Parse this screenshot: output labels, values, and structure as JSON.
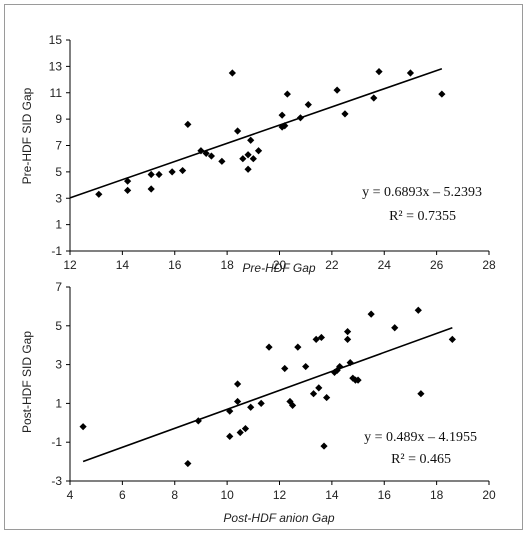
{
  "chart_data": [
    {
      "type": "scatter",
      "title": "",
      "xlabel": "Pre-HDF Gap",
      "ylabel": "Pre-HDF SID Gap",
      "xlim": [
        12,
        28
      ],
      "ylim": [
        -1,
        15
      ],
      "xticks": [
        12,
        14,
        16,
        18,
        20,
        22,
        24,
        26,
        28
      ],
      "yticks": [
        -1,
        1,
        3,
        5,
        7,
        9,
        11,
        13,
        15
      ],
      "x": [
        13.1,
        14.2,
        14.2,
        15.1,
        15.1,
        15.4,
        15.9,
        16.3,
        16.5,
        17.0,
        17.2,
        17.4,
        17.8,
        18.2,
        18.4,
        18.6,
        18.8,
        18.8,
        18.9,
        19.0,
        19.2,
        20.1,
        20.1,
        20.2,
        20.3,
        20.8,
        21.1,
        22.2,
        22.5,
        23.6,
        23.8,
        25.0,
        26.2
      ],
      "y": [
        3.3,
        4.3,
        3.6,
        4.8,
        3.7,
        4.8,
        5.0,
        5.1,
        8.6,
        6.6,
        6.4,
        6.2,
        5.8,
        12.5,
        8.1,
        6.0,
        6.3,
        5.2,
        7.4,
        6.0,
        6.6,
        8.4,
        9.3,
        8.5,
        10.9,
        9.1,
        10.1,
        11.2,
        9.4,
        10.6,
        12.6,
        12.5,
        10.9
      ],
      "trendline": {
        "slope": 0.6893,
        "intercept": -5.2393,
        "x_range": [
          12,
          26.2
        ]
      },
      "equation": "y = 0.6893x – 5.2393",
      "r2": "R² = 0.7355",
      "grid": false
    },
    {
      "type": "scatter",
      "title": "",
      "xlabel": "Post-HDF anion Gap",
      "ylabel": "Post-HDF SID Gap",
      "xlim": [
        4,
        20
      ],
      "ylim": [
        -3,
        7
      ],
      "xticks": [
        4,
        6,
        8,
        10,
        12,
        14,
        16,
        18,
        20
      ],
      "yticks": [
        -3,
        -1,
        1,
        3,
        5,
        7
      ],
      "x": [
        4.5,
        8.5,
        8.9,
        10.1,
        10.1,
        10.4,
        10.4,
        10.5,
        10.7,
        10.9,
        11.3,
        11.6,
        12.2,
        12.4,
        12.5,
        12.7,
        13.0,
        13.3,
        13.4,
        13.5,
        13.6,
        13.7,
        13.8,
        14.1,
        14.2,
        14.3,
        14.6,
        14.6,
        14.7,
        14.8,
        14.9,
        15.0,
        15.5,
        16.4,
        17.3,
        17.4,
        18.6
      ],
      "y": [
        -0.2,
        -2.1,
        0.1,
        -0.7,
        0.6,
        1.1,
        2.0,
        -0.5,
        -0.3,
        0.8,
        1.0,
        3.9,
        2.8,
        1.1,
        0.9,
        3.9,
        2.9,
        1.5,
        4.3,
        1.8,
        4.4,
        -1.2,
        1.3,
        2.6,
        2.7,
        2.9,
        4.7,
        4.3,
        3.1,
        2.3,
        2.2,
        2.2,
        5.6,
        4.9,
        5.8,
        1.5,
        4.3
      ],
      "trendline": {
        "slope": 0.489,
        "intercept": -4.1955,
        "x_range": [
          4.5,
          18.6
        ]
      },
      "equation": "y = 0.489x – 4.1955",
      "r2": "R² = 0.465",
      "grid": false
    }
  ]
}
